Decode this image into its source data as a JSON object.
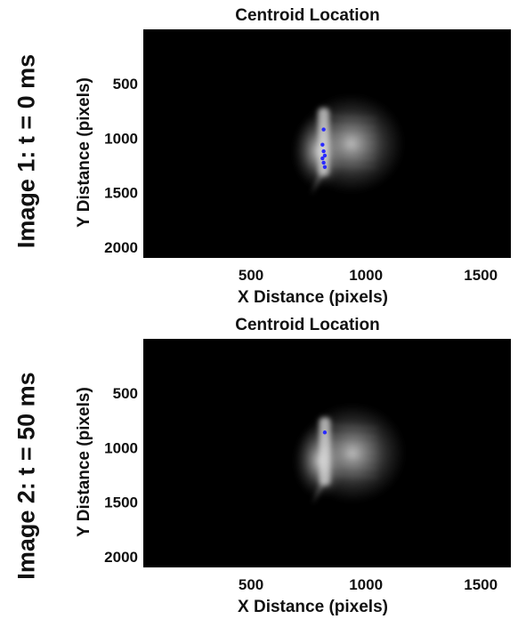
{
  "chart_data": [
    {
      "type": "heatmap",
      "side_label": "Image 1: t = 0 ms",
      "title": "Centroid Location",
      "xlabel": "X Distance (pixels)",
      "ylabel": "Y Distance (pixels)",
      "xlim": [
        0,
        1600
      ],
      "ylim": [
        0,
        2100
      ],
      "y_reversed": true,
      "xticks": [
        500,
        1000,
        1500
      ],
      "yticks": [
        500,
        1000,
        1500,
        2000
      ],
      "colormap": "gray",
      "background_color": "#000000",
      "centroid_color": "#2a2aff",
      "centroids": [
        {
          "x": 785,
          "y": 920
        },
        {
          "x": 780,
          "y": 1060
        },
        {
          "x": 785,
          "y": 1120
        },
        {
          "x": 790,
          "y": 1160
        },
        {
          "x": 780,
          "y": 1185
        },
        {
          "x": 785,
          "y": 1225
        },
        {
          "x": 790,
          "y": 1265
        }
      ]
    },
    {
      "type": "heatmap",
      "side_label": "Image 2: t = 50 ms",
      "title": "Centroid Location",
      "xlabel": "X Distance (pixels)",
      "ylabel": "Y Distance (pixels)",
      "xlim": [
        0,
        1600
      ],
      "ylim": [
        0,
        2100
      ],
      "y_reversed": true,
      "xticks": [
        500,
        1000,
        1500
      ],
      "yticks": [
        500,
        1000,
        1500,
        2000
      ],
      "colormap": "gray",
      "background_color": "#000000",
      "centroid_color": "#2a2aff",
      "centroids": [
        {
          "x": 790,
          "y": 860
        }
      ]
    }
  ]
}
